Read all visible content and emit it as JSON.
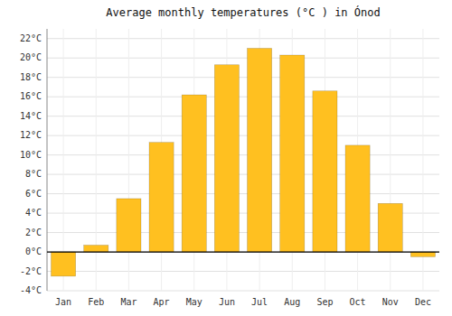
{
  "chart_data": {
    "type": "bar",
    "title": "Average monthly temperatures (°C ) in Ónod",
    "categories": [
      "Jan",
      "Feb",
      "Mar",
      "Apr",
      "May",
      "Jun",
      "Jul",
      "Aug",
      "Sep",
      "Oct",
      "Nov",
      "Dec"
    ],
    "values": [
      -2.5,
      0.7,
      5.5,
      11.3,
      16.2,
      19.3,
      21.0,
      20.3,
      16.6,
      11.0,
      5.0,
      -0.5
    ],
    "color": "#FFC020",
    "ylim": [
      -4,
      23
    ],
    "yticks": [
      {
        "value": -4,
        "label": "-4°C"
      },
      {
        "value": -2,
        "label": "-2°C"
      },
      {
        "value": 0,
        "label": "0°C"
      },
      {
        "value": 2,
        "label": "2°C"
      },
      {
        "value": 4,
        "label": "4°C"
      },
      {
        "value": 6,
        "label": "6°C"
      },
      {
        "value": 8,
        "label": "8°C"
      },
      {
        "value": 10,
        "label": "10°C"
      },
      {
        "value": 12,
        "label": "12°C"
      },
      {
        "value": 14,
        "label": "14°C"
      },
      {
        "value": 16,
        "label": "16°C"
      },
      {
        "value": 18,
        "label": "18°C"
      },
      {
        "value": 20,
        "label": "20°C"
      },
      {
        "value": 22,
        "label": "22°C"
      }
    ],
    "grid": true
  }
}
